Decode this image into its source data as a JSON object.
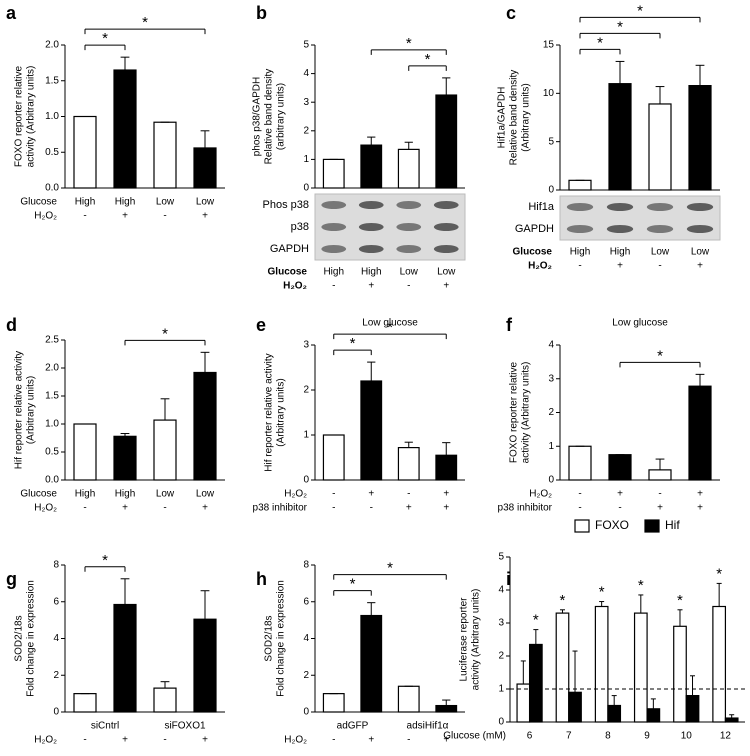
{
  "chart_data": [
    {
      "type": "bar",
      "panel": "a",
      "ylabel": [
        "FOXO reporter relative",
        "activity (Arbitrary units)"
      ],
      "values": [
        1.0,
        1.65,
        0.92,
        0.56
      ],
      "errors": [
        0,
        0.18,
        0,
        0.24
      ],
      "colors": [
        "#ffffff",
        "#000000",
        "#ffffff",
        "#000000"
      ],
      "ylim": [
        0,
        2
      ],
      "yticks": [
        {
          "value": 0,
          "label": "0.0"
        },
        {
          "value": 0.5,
          "label": "0.5"
        },
        {
          "value": 1,
          "label": "1.0"
        },
        {
          "value": 1.5,
          "label": "1.5"
        },
        {
          "value": 2,
          "label": "2.0"
        }
      ],
      "conditions": [
        {
          "name": "Glucose",
          "labels": [
            "High",
            "High",
            "Low",
            "Low"
          ]
        },
        {
          "name": "H₂O₂",
          "labels": [
            "-",
            "+",
            "-",
            "+"
          ]
        }
      ],
      "significance": [
        {
          "bars": [
            0,
            1
          ],
          "label": "*"
        },
        {
          "bars": [
            0,
            3
          ],
          "label": "*"
        }
      ]
    },
    {
      "type": "bar",
      "panel": "b",
      "ylabel": [
        "phos p38/GAPDH",
        "Relative band density",
        "(arbitrary units)"
      ],
      "values": [
        1.0,
        1.5,
        1.35,
        3.25
      ],
      "errors": [
        0,
        0.28,
        0.25,
        0.6
      ],
      "colors": [
        "#ffffff",
        "#000000",
        "#ffffff",
        "#000000"
      ],
      "ylim": [
        0,
        5
      ],
      "yticks": [
        0,
        1,
        2,
        3,
        4,
        5
      ],
      "blot": [
        "Phos p38",
        "p38",
        "GAPDH"
      ],
      "conditions": [
        {
          "name": "Glucose",
          "labels": [
            "High",
            "High",
            "Low",
            "Low"
          ]
        },
        {
          "name": "H₂O₂",
          "labels": [
            "-",
            "+",
            "-",
            "+"
          ]
        }
      ],
      "significance": [
        {
          "bars": [
            2,
            3
          ],
          "label": "*"
        },
        {
          "bars": [
            1,
            3
          ],
          "label": "*"
        }
      ]
    },
    {
      "type": "bar",
      "panel": "c",
      "ylabel": [
        "Hif1a/GAPDH",
        "Relative band density",
        "(Arbitrary units)"
      ],
      "values": [
        1.0,
        11.0,
        8.9,
        10.8
      ],
      "errors": [
        0,
        2.3,
        1.8,
        2.1
      ],
      "colors": [
        "#ffffff",
        "#000000",
        "#ffffff",
        "#000000"
      ],
      "ylim": [
        0,
        15
      ],
      "yticks": [
        0,
        5,
        10,
        15
      ],
      "blot": [
        "Hif1a",
        "GAPDH"
      ],
      "conditions": [
        {
          "name": "Glucose",
          "labels": [
            "High",
            "High",
            "Low",
            "Low"
          ]
        },
        {
          "name": "H₂O₂",
          "labels": [
            "-",
            "+",
            "-",
            "+"
          ]
        }
      ],
      "significance": [
        {
          "bars": [
            0,
            1
          ],
          "label": "*"
        },
        {
          "bars": [
            0,
            2
          ],
          "label": "*"
        },
        {
          "bars": [
            0,
            3
          ],
          "label": "*"
        }
      ]
    },
    {
      "type": "bar",
      "panel": "d",
      "ylabel": [
        "Hif reporter relative activity",
        "(Arbitrary units)"
      ],
      "values": [
        1.0,
        0.78,
        1.07,
        1.92
      ],
      "errors": [
        0,
        0.05,
        0.38,
        0.36
      ],
      "colors": [
        "#ffffff",
        "#000000",
        "#ffffff",
        "#000000"
      ],
      "ylim": [
        0,
        2.5
      ],
      "yticks": [
        {
          "value": 0,
          "label": "0.0"
        },
        {
          "value": 0.5,
          "label": "0.5"
        },
        {
          "value": 1,
          "label": "1.0"
        },
        {
          "value": 1.5,
          "label": "1.5"
        },
        {
          "value": 2,
          "label": "2.0"
        },
        {
          "value": 2.5,
          "label": "2.5"
        }
      ],
      "conditions": [
        {
          "name": "Glucose",
          "labels": [
            "High",
            "High",
            "Low",
            "Low"
          ]
        },
        {
          "name": "H₂O₂",
          "labels": [
            "-",
            "+",
            "-",
            "+"
          ]
        }
      ],
      "significance": [
        {
          "bars": [
            1,
            3
          ],
          "label": "*"
        }
      ]
    },
    {
      "type": "bar",
      "panel": "e",
      "subtitle": "Low glucose",
      "ylabel": [
        "Hif reporter relative activity",
        "(Arbitrary units)"
      ],
      "values": [
        1.0,
        2.2,
        0.72,
        0.55
      ],
      "errors": [
        0,
        0.42,
        0.12,
        0.28
      ],
      "colors": [
        "#ffffff",
        "#000000",
        "#ffffff",
        "#000000"
      ],
      "ylim": [
        0,
        3
      ],
      "yticks": [
        0,
        1,
        2,
        3
      ],
      "conditions": [
        {
          "name": "H₂O₂",
          "labels": [
            "-",
            "+",
            "-",
            "+"
          ]
        },
        {
          "name": "p38 inhibitor",
          "labels": [
            "-",
            "-",
            "+",
            "+"
          ]
        }
      ],
      "significance": [
        {
          "bars": [
            0,
            1
          ],
          "label": "*"
        },
        {
          "bars": [
            0,
            3
          ],
          "label": "*"
        }
      ]
    },
    {
      "type": "bar",
      "panel": "f",
      "subtitle": "Low glucose",
      "ylabel": [
        "FOXO reporter relative",
        "activity (Arbitrary units)"
      ],
      "values": [
        1.0,
        0.75,
        0.3,
        2.78
      ],
      "errors": [
        0,
        0,
        0.32,
        0.35
      ],
      "colors": [
        "#ffffff",
        "#000000",
        "#ffffff",
        "#000000"
      ],
      "ylim": [
        0,
        4
      ],
      "yticks": [
        0,
        1,
        2,
        3,
        4
      ],
      "conditions": [
        {
          "name": "H₂O₂",
          "labels": [
            "-",
            "+",
            "-",
            "+"
          ]
        },
        {
          "name": "p38 inhibitor",
          "labels": [
            "-",
            "-",
            "+",
            "+"
          ]
        }
      ],
      "significance": [
        {
          "bars": [
            1,
            3
          ],
          "label": "*"
        }
      ]
    },
    {
      "type": "bar",
      "panel": "g",
      "ylabel": [
        "SOD2/18s",
        "Fold change in expression"
      ],
      "values": [
        1.0,
        5.85,
        1.3,
        5.05
      ],
      "errors": [
        0,
        1.4,
        0.35,
        1.55
      ],
      "colors": [
        "#ffffff",
        "#000000",
        "#ffffff",
        "#000000"
      ],
      "ylim": [
        0,
        8
      ],
      "yticks": [
        0,
        2,
        4,
        6,
        8
      ],
      "groups": [
        "siCntrl",
        "siFOXO1"
      ],
      "conditions": [
        {
          "name": "H₂O₂",
          "labels": [
            "-",
            "+",
            "-",
            "+"
          ]
        }
      ],
      "significance": [
        {
          "bars": [
            0,
            1
          ],
          "label": "*"
        }
      ]
    },
    {
      "type": "bar",
      "panel": "h",
      "ylabel": [
        "SOD2/18s",
        "Fold change in expression"
      ],
      "values": [
        1.0,
        5.25,
        1.4,
        0.35
      ],
      "errors": [
        0,
        0.7,
        0,
        0.3
      ],
      "colors": [
        "#ffffff",
        "#000000",
        "#ffffff",
        "#000000"
      ],
      "ylim": [
        0,
        8
      ],
      "yticks": [
        0,
        2,
        4,
        6,
        8
      ],
      "groups": [
        "adGFP",
        "adsiHif1α"
      ],
      "conditions": [
        {
          "name": "H₂O₂",
          "labels": [
            "-",
            "+",
            "-",
            "+"
          ]
        }
      ],
      "significance": [
        {
          "bars": [
            0,
            1
          ],
          "label": "*"
        },
        {
          "bars": [
            0,
            3
          ],
          "label": "*"
        }
      ]
    },
    {
      "type": "bar",
      "panel": "i",
      "ylabel": [
        "Luciferase reporter",
        "activity (Arbitrary units)"
      ],
      "xlabel": "Glucose (mM)",
      "categories": [
        "6",
        "7",
        "8",
        "9",
        "10",
        "12"
      ],
      "series": [
        {
          "name": "FOXO",
          "color": "#ffffff",
          "values": [
            1.15,
            3.3,
            3.5,
            3.3,
            2.9,
            3.5
          ],
          "errors": [
            0.7,
            0.1,
            0.15,
            0.55,
            0.5,
            0.7
          ]
        },
        {
          "name": "Hif",
          "color": "#000000",
          "values": [
            2.35,
            0.9,
            0.5,
            0.4,
            0.8,
            0.12
          ],
          "errors": [
            0.45,
            1.25,
            0.3,
            0.3,
            0.6,
            0.1
          ]
        }
      ],
      "ylim": [
        0,
        5
      ],
      "yticks": [
        0,
        1,
        2,
        3,
        4,
        5
      ],
      "reference_line": 1,
      "legend": "top",
      "significance": [
        {
          "series": 1,
          "index": 0,
          "label": "*"
        },
        {
          "series": 0,
          "index": 1,
          "label": "*"
        },
        {
          "series": 0,
          "index": 2,
          "label": "*"
        },
        {
          "series": 0,
          "index": 3,
          "label": "*"
        },
        {
          "series": 0,
          "index": 4,
          "label": "*"
        },
        {
          "series": 0,
          "index": 5,
          "label": "*"
        }
      ]
    }
  ]
}
